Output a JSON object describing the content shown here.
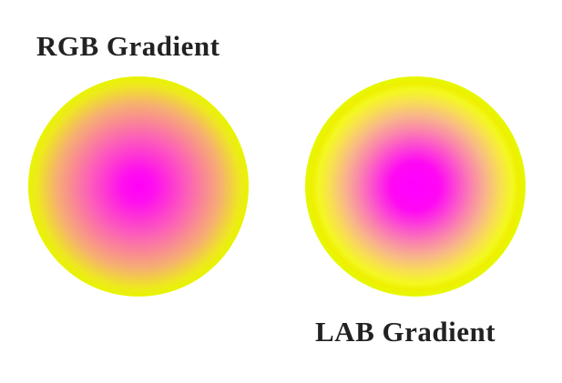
{
  "labels": {
    "rgb": "RGB Gradient",
    "lab": "LAB Gradient"
  }
}
